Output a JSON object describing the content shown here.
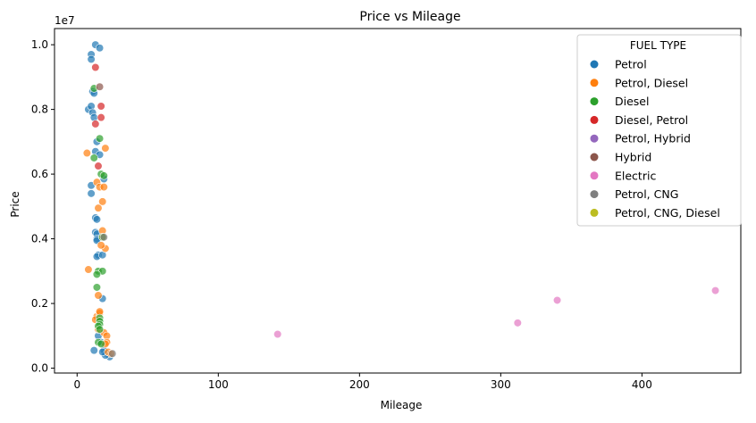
{
  "chart_data": {
    "type": "scatter",
    "title": "Price vs Mileage",
    "xlabel": "Mileage",
    "ylabel": "Price",
    "offset_label": "1e7",
    "xlim": [
      -16,
      470
    ],
    "ylim": [
      -0.15,
      10.5
    ],
    "xticks": [
      0,
      100,
      200,
      300,
      400
    ],
    "yticks": [
      0.0,
      0.2,
      0.4,
      0.6,
      0.8,
      1.0
    ],
    "ytick_labels": [
      "0.0",
      "0.2",
      "0.4",
      "0.6",
      "0.8",
      "1.0"
    ],
    "y_unit_note": "y values below are in millions (1e6); tick labels are in units of 1e7",
    "grid": false,
    "legend": {
      "title": "FUEL TYPE",
      "placement": "top-right"
    },
    "series": [
      {
        "name": "Petrol",
        "color": "#1f77b4",
        "points": [
          [
            13,
            10.0
          ],
          [
            16,
            9.9
          ],
          [
            10,
            9.7
          ],
          [
            10,
            9.55
          ],
          [
            11,
            8.55
          ],
          [
            12,
            8.5
          ],
          [
            8,
            8.0
          ],
          [
            10,
            8.1
          ],
          [
            11,
            7.9
          ],
          [
            12,
            7.75
          ],
          [
            14,
            7.0
          ],
          [
            13,
            6.7
          ],
          [
            16,
            6.6
          ],
          [
            10,
            5.65
          ],
          [
            10,
            5.4
          ],
          [
            19,
            5.85
          ],
          [
            13,
            4.65
          ],
          [
            14,
            4.6
          ],
          [
            13,
            4.2
          ],
          [
            14,
            4.15
          ],
          [
            14,
            4.0
          ],
          [
            14,
            3.95
          ],
          [
            15,
            3.5
          ],
          [
            14,
            3.45
          ],
          [
            18,
            3.5
          ],
          [
            18,
            2.15
          ],
          [
            15,
            1.0
          ],
          [
            12,
            0.55
          ],
          [
            19,
            0.55
          ],
          [
            21,
            0.45
          ],
          [
            23,
            0.35
          ],
          [
            20,
            0.4
          ],
          [
            18,
            0.5
          ],
          [
            17,
            0.8
          ]
        ]
      },
      {
        "name": "Petrol, Diesel",
        "color": "#ff7f0e",
        "points": [
          [
            7,
            6.65
          ],
          [
            20,
            6.8
          ],
          [
            14,
            5.75
          ],
          [
            16,
            5.6
          ],
          [
            19,
            5.6
          ],
          [
            18,
            5.15
          ],
          [
            15,
            4.95
          ],
          [
            18,
            4.25
          ],
          [
            18,
            4.05
          ],
          [
            20,
            3.7
          ],
          [
            17,
            3.8
          ],
          [
            8,
            3.05
          ],
          [
            15,
            2.25
          ],
          [
            14,
            1.6
          ],
          [
            16,
            1.7
          ],
          [
            16,
            1.75
          ],
          [
            15,
            1.2
          ],
          [
            19,
            1.1
          ],
          [
            21,
            1.0
          ],
          [
            21,
            0.8
          ],
          [
            20,
            0.75
          ],
          [
            22,
            0.5
          ],
          [
            24,
            0.45
          ],
          [
            13,
            1.5
          ]
        ]
      },
      {
        "name": "Diesel",
        "color": "#2ca02c",
        "points": [
          [
            12,
            8.65
          ],
          [
            16,
            7.1
          ],
          [
            12,
            6.5
          ],
          [
            17,
            6.0
          ],
          [
            19,
            5.95
          ],
          [
            18,
            4.05
          ],
          [
            15,
            3.0
          ],
          [
            18,
            3.0
          ],
          [
            14,
            2.9
          ],
          [
            14,
            2.5
          ],
          [
            16,
            1.55
          ],
          [
            16,
            1.45
          ],
          [
            16,
            1.35
          ],
          [
            15,
            1.3
          ],
          [
            16,
            1.2
          ],
          [
            15,
            0.8
          ],
          [
            17,
            0.75
          ]
        ]
      },
      {
        "name": "Diesel, Petrol",
        "color": "#d62728",
        "points": [
          [
            13,
            9.3
          ],
          [
            17,
            8.1
          ],
          [
            17,
            7.75
          ],
          [
            13,
            7.55
          ],
          [
            15,
            6.25
          ]
        ]
      },
      {
        "name": "Petrol, Hybrid",
        "color": "#9467bd",
        "points": []
      },
      {
        "name": "Hybrid",
        "color": "#8c564b",
        "points": [
          [
            16,
            8.7
          ]
        ]
      },
      {
        "name": "Electric",
        "color": "#e377c2",
        "points": [
          [
            142,
            1.05
          ],
          [
            312,
            1.4
          ],
          [
            340,
            2.1
          ],
          [
            452,
            2.4
          ]
        ]
      },
      {
        "name": "Petrol, CNG",
        "color": "#7f7f7f",
        "points": [
          [
            19,
            4.05
          ],
          [
            25,
            0.45
          ]
        ]
      },
      {
        "name": "Petrol, CNG, Diesel",
        "color": "#bcbd22",
        "points": []
      }
    ]
  }
}
